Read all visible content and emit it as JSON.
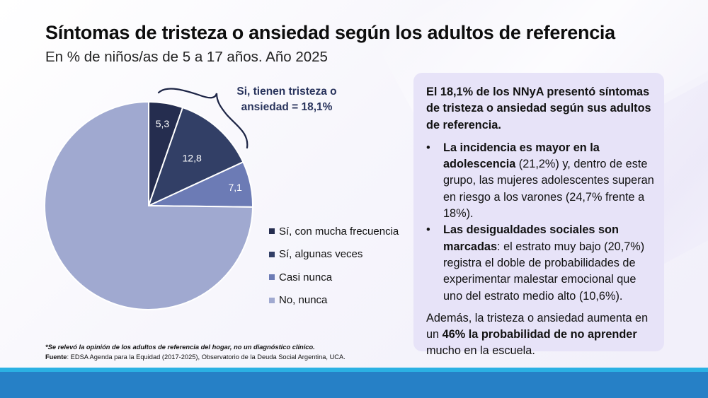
{
  "header": {
    "title": "Síntomas de tristeza o ansiedad según los adultos de referencia",
    "subtitle": "En % de niños/as de 5 a 17 años. Año 2025"
  },
  "chart_data": {
    "type": "pie",
    "title": "Síntomas de tristeza o ansiedad según los adultos de referencia",
    "subtitle": "En % de niños/as de 5 a 17 años. Año 2025",
    "start_angle": "12 o'clock, clockwise",
    "legend_position": "right",
    "slices": [
      {
        "name": "Sí, con mucha frecuencia",
        "value": 5.3,
        "label": "5,3",
        "color": "#252d4f"
      },
      {
        "name": "Sí, algunas veces",
        "value": 12.8,
        "label": "12,8",
        "color": "#323f66"
      },
      {
        "name": "Casi nunca",
        "value": 7.1,
        "label": "7,1",
        "color": "#6c7bb5"
      },
      {
        "name": "No, nunca",
        "value": 74.8,
        "label": "",
        "color": "#a0a9d0"
      }
    ],
    "annotation": {
      "line1": "Si, tienen tristeza o",
      "line2": "ansiedad = 18,1%",
      "brace_color": "#1c2445"
    }
  },
  "panel": {
    "lead": "El 18,1% de los NNyA presentó síntomas de tristeza o ansiedad según sus adultos de referencia.",
    "bullet_char": "•",
    "bullets": [
      {
        "bold": "La incidencia es mayor en la adolescencia",
        "text": " (21,2%) y, dentro de este grupo, las mujeres adolescentes superan en riesgo a los varones (24,7% frente a 18%)."
      },
      {
        "bold": "Las desigualdades sociales son marcadas",
        "text": ": el estrato muy bajo (20,7%) registra el doble de probabilidades de experimentar malestar emocional que uno del estrato medio alto (10,6%)."
      }
    ],
    "closing_pre": "Además, la tristeza o ansiedad aumenta en un ",
    "closing_bold": "46% la probabilidad de no aprender",
    "closing_post": " mucho en la escuela."
  },
  "footer": {
    "footnote": "*Se relevó la opinión de los adultos de referencia del hogar, no un diagnóstico clínico.",
    "source_label": "Fuente",
    "source_text": ": EDSA Agenda para la Equidad (2017-2025), Observatorio de la Deuda Social Argentina, UCA."
  },
  "colors": {
    "bar_stripe": "#2bb1e3",
    "bar_main": "#2680c6",
    "panel_bg": "#e7e3f8"
  }
}
